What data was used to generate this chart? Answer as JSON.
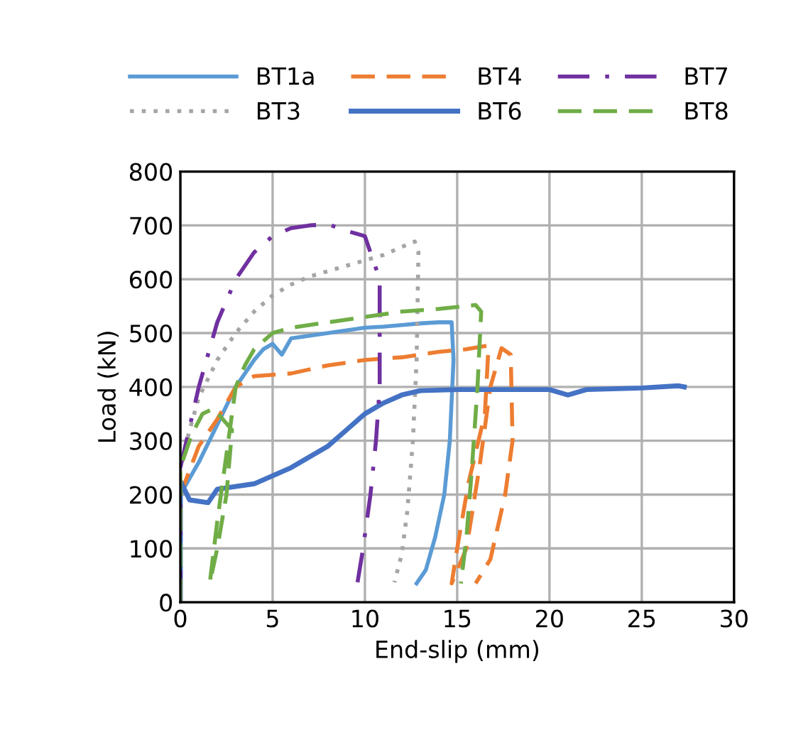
{
  "chart_data": {
    "type": "line",
    "xlabel": "End-slip (mm)",
    "ylabel": "Load (kN)",
    "xlim": [
      0,
      30
    ],
    "ylim": [
      0,
      800
    ],
    "xticks": [
      0,
      5,
      10,
      15,
      20,
      25,
      30
    ],
    "yticks": [
      0,
      100,
      200,
      300,
      400,
      500,
      600,
      700,
      800
    ],
    "grid": true,
    "legend": "top",
    "marker": "none",
    "series": [
      {
        "name": "BT1a",
        "color": "#5b9bd5",
        "line_style": "solid",
        "x": [
          0,
          0,
          0.5,
          1,
          2,
          3,
          4,
          4.5,
          5,
          5.5,
          6,
          7,
          8,
          9,
          10,
          11,
          12,
          13,
          14,
          14.7,
          14.8,
          14.6,
          14.3,
          13.8,
          13.3,
          12.8
        ],
        "values": [
          0,
          200,
          230,
          260,
          330,
          400,
          450,
          470,
          480,
          460,
          490,
          495,
          500,
          505,
          510,
          512,
          515,
          518,
          520,
          520,
          450,
          300,
          200,
          120,
          60,
          35
        ]
      },
      {
        "name": "BT3",
        "color": "#a5a5a5",
        "line_style": "dotted",
        "x": [
          0,
          0,
          0.5,
          1,
          2,
          3,
          4,
          5,
          6,
          7,
          8,
          9,
          10,
          11,
          12,
          12.7,
          12.9,
          12.8,
          12.6,
          12.3,
          12,
          11.6
        ],
        "values": [
          0,
          250,
          320,
          380,
          450,
          500,
          540,
          570,
          590,
          605,
          615,
          625,
          635,
          645,
          660,
          670,
          650,
          450,
          300,
          170,
          90,
          37
        ]
      },
      {
        "name": "BT4",
        "color": "#ed7d31",
        "line_style": "dashed",
        "x": [
          0,
          0,
          1,
          2,
          3,
          4,
          6,
          8,
          10,
          12,
          14,
          15.5,
          16.7,
          16.5,
          15.6,
          15,
          14.7,
          15.5,
          16.2,
          16.8,
          17.4,
          17.9,
          18,
          17.6,
          16.8,
          16
        ],
        "values": [
          0,
          200,
          290,
          340,
          400,
          420,
          425,
          440,
          450,
          455,
          465,
          470,
          477,
          350,
          220,
          100,
          35,
          100,
          250,
          400,
          472,
          460,
          300,
          200,
          80,
          35
        ]
      },
      {
        "name": "BT6",
        "color": "#4472c4",
        "line_style": "solid",
        "x": [
          0,
          0,
          0.5,
          1.5,
          2,
          4,
          6,
          8,
          9,
          10,
          11,
          12,
          13,
          15,
          18,
          20,
          21,
          22,
          25,
          27,
          27.3
        ],
        "values": [
          0,
          225,
          190,
          185,
          210,
          220,
          250,
          290,
          320,
          350,
          370,
          385,
          393,
          395,
          395,
          395,
          385,
          395,
          398,
          402,
          400
        ]
      },
      {
        "name": "BT7",
        "color": "#7030a0",
        "line_style": "dashdot",
        "x": [
          0,
          0,
          1,
          2,
          3,
          4,
          5,
          6,
          7,
          8,
          9,
          10,
          10.8,
          10.8,
          10.6,
          10.3,
          9.9,
          9.6
        ],
        "values": [
          0,
          250,
          400,
          520,
          600,
          650,
          680,
          695,
          700,
          702,
          690,
          680,
          600,
          400,
          300,
          200,
          100,
          37
        ]
      },
      {
        "name": "BT8",
        "color": "#70ad47",
        "line_style": "dashed",
        "x": [
          0,
          0,
          0.6,
          1.2,
          1.8,
          2.8,
          2.5,
          2,
          1.6,
          2,
          2.6,
          3,
          3.5,
          4,
          5,
          6,
          8,
          10,
          12,
          14,
          16,
          16.3,
          16.1,
          15.8,
          15.5,
          15.2
        ],
        "values": [
          0,
          250,
          310,
          350,
          360,
          320,
          200,
          100,
          37,
          150,
          300,
          400,
          440,
          470,
          500,
          510,
          520,
          530,
          540,
          545,
          552,
          540,
          400,
          250,
          120,
          35
        ]
      }
    ]
  }
}
